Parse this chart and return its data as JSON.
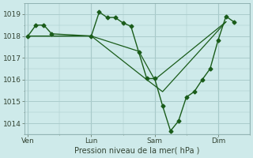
{
  "bg_color": "#ceeaea",
  "grid_color": "#aacccc",
  "line_color": "#1a5c1a",
  "marker_color": "#1a5c1a",
  "xlabel": "Pression niveau de la mer( hPa )",
  "ylim": [
    1013.5,
    1019.5
  ],
  "yticks": [
    1014,
    1015,
    1016,
    1017,
    1018,
    1019
  ],
  "xtick_labels": [
    "Ven",
    "Lun",
    "Sam",
    "Dim"
  ],
  "xtick_positions": [
    0,
    4,
    8,
    12
  ],
  "xlim": [
    -0.2,
    14.0
  ],
  "series1_x": [
    0,
    0.5,
    1.0,
    1.5,
    4.0,
    4.5,
    5.0,
    5.5,
    6.0,
    6.5,
    7.0,
    7.5,
    8.0,
    8.5,
    9.0,
    9.5,
    10.0,
    10.5,
    11.0,
    11.5,
    12.0,
    12.5,
    13.0
  ],
  "series1_y": [
    1018.0,
    1018.5,
    1018.5,
    1018.1,
    1018.0,
    1019.1,
    1018.85,
    1018.85,
    1018.6,
    1018.45,
    1017.25,
    1016.05,
    1016.05,
    1014.8,
    1013.65,
    1014.1,
    1015.2,
    1015.45,
    1016.0,
    1016.5,
    1017.8,
    1018.9,
    1018.65
  ],
  "series2_x": [
    0,
    4.0,
    7.0,
    8.0,
    12.5
  ],
  "series2_y": [
    1018.0,
    1018.0,
    1017.3,
    1016.0,
    1018.65
  ],
  "series3_x": [
    0,
    4.0,
    7.5,
    8.5,
    12.5
  ],
  "series3_y": [
    1018.0,
    1018.0,
    1016.0,
    1015.45,
    1018.65
  ]
}
